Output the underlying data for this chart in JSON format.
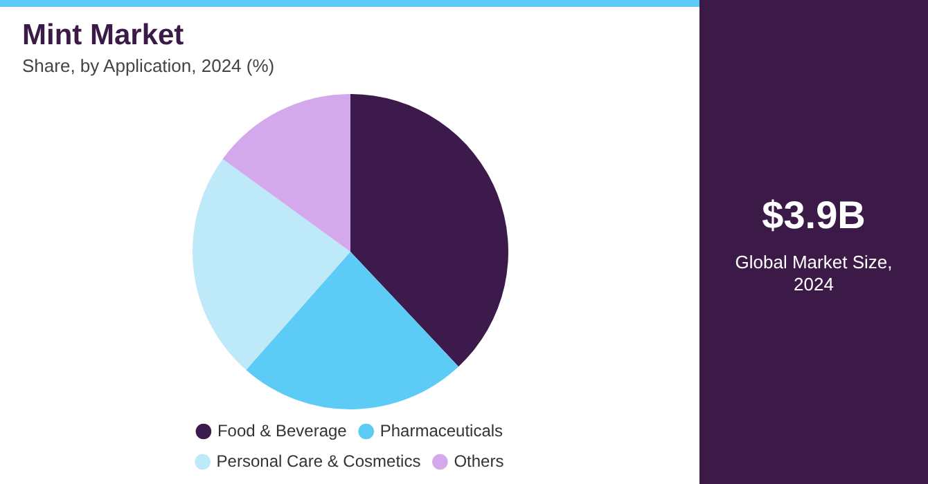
{
  "chart_data": {
    "type": "pie",
    "title": "Mint Market",
    "subtitle": "Share, by Application, 2024 (%)",
    "categories": [
      "Food & Beverage",
      "Pharmaceuticals",
      "Personal Care & Cosmetics",
      "Others"
    ],
    "values": [
      38,
      23.5,
      23.5,
      15
    ],
    "colors": [
      "#3c1a4b",
      "#5ccbf5",
      "#bde9f8",
      "#d4a9ec"
    ],
    "legend": "bottom",
    "annotations": [
      "$3.9B",
      "Global Market Size, 2024"
    ]
  }
}
